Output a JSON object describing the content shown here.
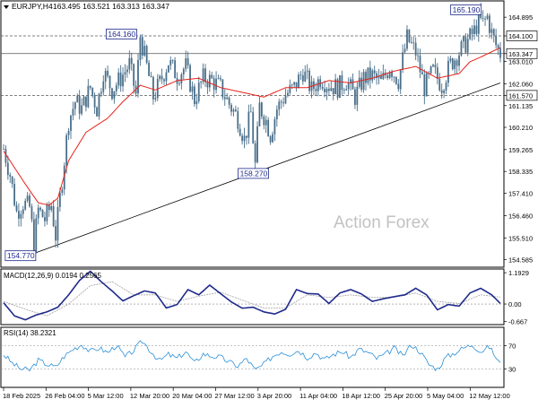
{
  "header": {
    "symbol": "EURJPY,H4",
    "ohlc": "163.495 163.521 163.313 163.347"
  },
  "watermark": "Action Forex",
  "colors": {
    "candle": "#4a6f8a",
    "ma": "#e8221b",
    "macd_line": "#1f2a8c",
    "macd_signal": "#a0a0a0",
    "rsi": "#2a8fd6",
    "trendline": "#000000",
    "level_line": "#555555",
    "axis_text": "#000000"
  },
  "chart_data": [
    {
      "type": "candlestick",
      "panel": "price",
      "ylim": [
        154.3,
        165.55
      ],
      "price_ticks": [
        "164.895",
        "164.100",
        "163.347",
        "163.010",
        "162.060",
        "161.570",
        "161.135",
        "160.210",
        "159.265",
        "158.335",
        "157.410",
        "156.460",
        "155.510",
        "154.585"
      ],
      "x_tick_labels": [
        "18 Feb 2025",
        "26 Feb 04:00",
        "5 Mar 12:00",
        "12 Mar 20:00",
        "20 Mar 04:00",
        "27 Mar 12:00",
        "3 Apr 20:00",
        "11 Apr 04:00",
        "18 Apr 12:00",
        "25 Apr 20:00",
        "5 May 04:00",
        "12 May 12:00"
      ],
      "current_price": "163.347",
      "horizontal_levels": [
        {
          "value": 164.1,
          "label": "164.100",
          "style": "dashed"
        },
        {
          "value": 161.57,
          "label": "161.570",
          "style": "dashed"
        },
        {
          "value": 163.347,
          "label": "163.347",
          "style": "solid"
        }
      ],
      "annotations": [
        {
          "text": "154.770",
          "x": 14,
          "y": 154.77
        },
        {
          "text": "164.160",
          "x": 63,
          "y": 164.16
        },
        {
          "text": "158.270",
          "x": 123,
          "y": 158.27
        },
        {
          "text": "165.190",
          "x": 221,
          "y": 165.19
        }
      ],
      "trendline": [
        {
          "x": 14,
          "y": 154.85
        },
        {
          "x": 229,
          "y": 162.1
        }
      ],
      "moving_average": {
        "x": [
          0,
          10,
          16,
          21,
          25,
          30,
          38,
          48,
          55,
          63,
          70,
          80,
          90,
          100,
          110,
          120,
          130,
          140,
          150,
          160,
          170,
          180,
          190,
          200,
          210,
          215,
          220,
          229
        ],
        "y": [
          159.2,
          157.8,
          157.0,
          156.9,
          157.2,
          158.8,
          160.0,
          160.6,
          161.3,
          162.0,
          161.8,
          162.2,
          162.3,
          161.9,
          161.7,
          161.5,
          161.9,
          161.9,
          162.2,
          162.1,
          162.3,
          162.6,
          162.8,
          162.3,
          162.5,
          163.0,
          163.2,
          163.6
        ]
      },
      "close_path": {
        "x": [
          0,
          3,
          6,
          9,
          12,
          14,
          16,
          19,
          22,
          24,
          27,
          30,
          33,
          36,
          40,
          43,
          46,
          50,
          54,
          58,
          61,
          63,
          66,
          69,
          72,
          76,
          80,
          84,
          88,
          92,
          96,
          100,
          104,
          108,
          111,
          114,
          116,
          118,
          121,
          123,
          126,
          130,
          134,
          138,
          142,
          146,
          150,
          154,
          158,
          162,
          166,
          170,
          174,
          178,
          182,
          186,
          190,
          194,
          198,
          202,
          206,
          210,
          214,
          217,
          219,
          221,
          223,
          225,
          227,
          229
        ],
        "y": [
          159.3,
          158.2,
          156.6,
          157.0,
          156.8,
          155.3,
          156.7,
          156.3,
          156.9,
          155.6,
          158.0,
          160.5,
          161.3,
          161.0,
          161.9,
          161.0,
          162.6,
          161.8,
          162.3,
          162.9,
          161.6,
          164.1,
          162.8,
          161.5,
          162.1,
          163.0,
          162.4,
          162.8,
          161.4,
          162.3,
          162.2,
          161.9,
          161.2,
          160.6,
          159.7,
          160.8,
          158.6,
          161.1,
          160.5,
          159.9,
          161.0,
          161.6,
          161.9,
          162.6,
          161.8,
          162.3,
          162.0,
          161.9,
          162.2,
          161.5,
          162.3,
          162.4,
          162.1,
          162.8,
          162.2,
          164.0,
          163.4,
          161.9,
          162.6,
          162.0,
          162.9,
          163.4,
          163.9,
          164.3,
          164.8,
          164.6,
          164.9,
          164.2,
          163.7,
          163.35
        ]
      },
      "pivots": [
        {
          "x": 14,
          "y": 154.77
        },
        {
          "x": 63,
          "y": 164.16
        },
        {
          "x": 116,
          "y": 158.27
        },
        {
          "x": 221,
          "y": 165.19
        }
      ]
    },
    {
      "type": "line",
      "panel": "macd",
      "title": "MACD(12,26,9) 0.0194 0.2565",
      "ylim": [
        -0.75,
        1.3
      ],
      "ticks": [
        "1.1929",
        "0.00",
        "-0.667"
      ],
      "series": [
        {
          "role": "main",
          "x": [
            0,
            5,
            10,
            15,
            20,
            25,
            30,
            35,
            40,
            45,
            50,
            55,
            60,
            65,
            70,
            75,
            80,
            85,
            90,
            95,
            100,
            105,
            110,
            115,
            120,
            125,
            130,
            135,
            140,
            145,
            150,
            155,
            160,
            165,
            170,
            175,
            180,
            185,
            190,
            195,
            200,
            205,
            210,
            215,
            220,
            225,
            229
          ],
          "y": [
            0.05,
            -0.45,
            -0.6,
            -0.42,
            -0.3,
            -0.12,
            0.35,
            0.9,
            1.25,
            0.85,
            0.5,
            0.12,
            0.32,
            0.5,
            0.42,
            -0.15,
            -0.02,
            0.55,
            0.35,
            0.72,
            0.4,
            0.08,
            -0.16,
            -0.12,
            -0.3,
            -0.38,
            -0.2,
            0.55,
            0.4,
            0.38,
            0.02,
            0.42,
            0.55,
            0.38,
            0.1,
            0.2,
            0.28,
            0.35,
            0.6,
            0.35,
            -0.22,
            -0.02,
            -0.08,
            0.42,
            0.6,
            0.35,
            0.02
          ]
        },
        {
          "role": "signal",
          "x": [
            0,
            10,
            20,
            30,
            40,
            50,
            60,
            70,
            80,
            90,
            100,
            110,
            120,
            130,
            140,
            150,
            160,
            170,
            180,
            190,
            200,
            210,
            220,
            229
          ],
          "y": [
            0.1,
            -0.2,
            -0.45,
            0.0,
            0.7,
            0.85,
            0.35,
            0.35,
            0.1,
            0.3,
            0.45,
            0.15,
            -0.15,
            -0.15,
            0.35,
            0.25,
            0.35,
            0.25,
            0.25,
            0.42,
            0.1,
            0.02,
            0.35,
            0.26
          ]
        }
      ]
    },
    {
      "type": "line",
      "panel": "rsi",
      "title": "RSI(14) 38.2321",
      "ylim": [
        0,
        100
      ],
      "ticks": [
        "70",
        "30"
      ],
      "levels": [
        70,
        30
      ],
      "series": [
        {
          "role": "rsi",
          "x": [
            0,
            4,
            8,
            12,
            16,
            20,
            24,
            28,
            32,
            36,
            40,
            44,
            48,
            52,
            56,
            60,
            64,
            68,
            72,
            76,
            80,
            84,
            88,
            92,
            96,
            100,
            104,
            108,
            112,
            116,
            120,
            124,
            128,
            132,
            136,
            140,
            144,
            148,
            152,
            156,
            160,
            164,
            168,
            172,
            176,
            180,
            184,
            188,
            192,
            196,
            200,
            204,
            208,
            212,
            216,
            220,
            224,
            229
          ],
          "y": [
            55,
            40,
            30,
            28,
            45,
            38,
            33,
            52,
            64,
            72,
            60,
            66,
            58,
            71,
            50,
            62,
            78,
            60,
            44,
            55,
            48,
            60,
            40,
            56,
            52,
            50,
            42,
            35,
            48,
            28,
            38,
            52,
            60,
            56,
            62,
            50,
            58,
            46,
            55,
            60,
            50,
            64,
            58,
            48,
            55,
            66,
            52,
            72,
            60,
            38,
            30,
            50,
            58,
            66,
            72,
            60,
            68,
            38
          ]
        }
      ]
    }
  ]
}
